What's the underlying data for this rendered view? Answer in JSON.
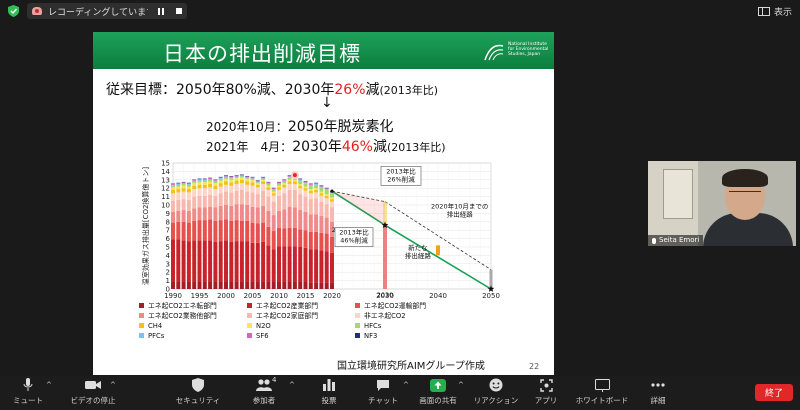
{
  "top_bar": {
    "recording_text": "レコーディングしています...",
    "view_label": "表示"
  },
  "slide": {
    "title": "日本の排出削減目標",
    "org_logo_text": "National Institute for Environmental Studies, Japan",
    "line1": {
      "prefix": "従来目標：2050年80%減、2030年",
      "highlight": "26%",
      "suffix": "減",
      "note": "(2013年比)"
    },
    "line2": {
      "label": "2020年10月：",
      "value": "2050年脱炭素化"
    },
    "line3": {
      "label": "2021年　4月：",
      "prefix": "2030年",
      "highlight": "46%",
      "suffix": "減",
      "note": "(2013年比)"
    },
    "credit": "国立環境研究所AIMグループ作成",
    "page_number": "22"
  },
  "chart_data": {
    "type": "bar",
    "ylabel": "温室効果ガス排出量[CO2換算億トン]",
    "ylim": [
      0,
      15
    ],
    "yticks": [
      "0",
      "1",
      "2",
      "3",
      "4",
      "5",
      "6",
      "7",
      "8",
      "9",
      "10",
      "11",
      "12",
      "13",
      "14",
      "15"
    ],
    "xticks": [
      "1990",
      "1995",
      "2000",
      "2005",
      "2010",
      "2015",
      "2020",
      "2030",
      "2040",
      "2050"
    ],
    "annotations": [
      {
        "text": "2020"
      },
      {
        "text": "2030"
      },
      {
        "text": "2013年比\n26%削減"
      },
      {
        "text": "2013年比\n46%削減"
      },
      {
        "text": "2020年10月までの\n排出経路"
      },
      {
        "text": "新たな\n排出経路"
      }
    ],
    "colors": {
      "energy_conversion": "#a51c24",
      "industry": "#c8232c",
      "transport": "#e6504e",
      "business": "#f08a8a",
      "household": "#f7b8b0",
      "non_energy_co2": "#fbd6c8",
      "ch4": "#f3c21a",
      "n2o": "#f8e55a",
      "hfcs": "#a8d86a",
      "pfcs": "#7ac3ee",
      "sf6": "#e060c0",
      "nf3": "#223080",
      "new_pathway": "#18a050",
      "old_pathway": "#333333"
    },
    "legend": [
      [
        "エネ起CO2エネ転部門",
        "エネ起CO2産業部門",
        "エネ起CO2運輸部門"
      ],
      [
        "エネ起CO2業務他部門",
        "エネ起CO2家庭部門",
        "非エネ起CO2"
      ],
      [
        "CH4",
        "N2O",
        "HFCs"
      ],
      [
        "PFCs",
        "SF6",
        "NF3"
      ]
    ],
    "series_years": [
      1990,
      1991,
      1992,
      1993,
      1994,
      1995,
      1996,
      1997,
      1998,
      1999,
      2000,
      2001,
      2002,
      2003,
      2004,
      2005,
      2006,
      2007,
      2008,
      2009,
      2010,
      2011,
      2012,
      2013,
      2014,
      2015,
      2016,
      2017,
      2018,
      2019,
      2020
    ],
    "series": [
      {
        "name": "エネ起CO2エネ転部門",
        "values": [
          0.9,
          0.9,
          0.9,
          0.9,
          0.9,
          0.9,
          0.9,
          0.9,
          0.9,
          0.9,
          0.9,
          0.9,
          0.9,
          0.9,
          0.9,
          0.9,
          0.9,
          0.9,
          0.9,
          0.9,
          0.9,
          0.9,
          0.9,
          0.9,
          0.9,
          0.9,
          0.8,
          0.8,
          0.8,
          0.8,
          0.8
        ]
      },
      {
        "name": "エネ起CO2産業部門",
        "values": [
          5.0,
          5.0,
          4.9,
          4.8,
          4.9,
          4.9,
          4.9,
          4.9,
          4.7,
          4.8,
          4.9,
          4.7,
          4.8,
          4.8,
          4.8,
          4.6,
          4.6,
          4.7,
          4.3,
          3.8,
          4.2,
          4.2,
          4.2,
          4.2,
          4.1,
          4.0,
          3.9,
          3.9,
          3.8,
          3.7,
          3.5
        ]
      },
      {
        "name": "エネ起CO2運輸部門",
        "values": [
          2.0,
          2.1,
          2.2,
          2.2,
          2.3,
          2.4,
          2.4,
          2.5,
          2.5,
          2.5,
          2.5,
          2.5,
          2.5,
          2.4,
          2.4,
          2.4,
          2.3,
          2.3,
          2.2,
          2.2,
          2.2,
          2.1,
          2.2,
          2.2,
          2.1,
          2.1,
          2.1,
          2.1,
          2.1,
          2.1,
          1.9
        ]
      },
      {
        "name": "エネ起CO2業務他部門",
        "values": [
          1.3,
          1.3,
          1.4,
          1.4,
          1.5,
          1.5,
          1.5,
          1.5,
          1.6,
          1.7,
          1.7,
          1.8,
          1.9,
          2.0,
          1.9,
          1.9,
          1.9,
          2.0,
          1.9,
          1.9,
          2.0,
          2.3,
          2.5,
          2.4,
          2.3,
          2.2,
          2.1,
          2.1,
          2.0,
          1.9,
          1.8
        ]
      },
      {
        "name": "エネ起CO2家庭部門",
        "values": [
          1.3,
          1.3,
          1.3,
          1.3,
          1.4,
          1.4,
          1.4,
          1.4,
          1.4,
          1.5,
          1.6,
          1.6,
          1.6,
          1.7,
          1.6,
          1.7,
          1.6,
          1.8,
          1.7,
          1.6,
          1.8,
          1.9,
          2.0,
          2.1,
          1.9,
          1.8,
          1.8,
          1.9,
          1.7,
          1.6,
          1.7
        ]
      },
      {
        "name": "非エネ起CO2",
        "values": [
          0.9,
          0.9,
          0.9,
          0.9,
          0.9,
          0.9,
          0.9,
          0.9,
          0.8,
          0.8,
          0.8,
          0.8,
          0.8,
          0.8,
          0.8,
          0.8,
          0.8,
          0.8,
          0.8,
          0.7,
          0.7,
          0.7,
          0.7,
          0.7,
          0.7,
          0.7,
          0.7,
          0.7,
          0.7,
          0.7,
          0.7
        ]
      },
      {
        "name": "CH4",
        "values": [
          0.4,
          0.4,
          0.4,
          0.4,
          0.4,
          0.4,
          0.4,
          0.4,
          0.4,
          0.4,
          0.4,
          0.4,
          0.4,
          0.4,
          0.4,
          0.4,
          0.3,
          0.3,
          0.3,
          0.3,
          0.3,
          0.3,
          0.3,
          0.3,
          0.3,
          0.3,
          0.3,
          0.3,
          0.3,
          0.3,
          0.3
        ]
      },
      {
        "name": "N2O",
        "values": [
          0.3,
          0.3,
          0.3,
          0.3,
          0.3,
          0.3,
          0.3,
          0.3,
          0.3,
          0.3,
          0.3,
          0.3,
          0.3,
          0.3,
          0.3,
          0.3,
          0.2,
          0.2,
          0.2,
          0.2,
          0.2,
          0.2,
          0.2,
          0.2,
          0.2,
          0.2,
          0.2,
          0.2,
          0.2,
          0.2,
          0.2
        ]
      },
      {
        "name": "HFCs",
        "values": [
          0.2,
          0.2,
          0.2,
          0.2,
          0.2,
          0.2,
          0.2,
          0.2,
          0.2,
          0.2,
          0.2,
          0.2,
          0.1,
          0.1,
          0.1,
          0.1,
          0.1,
          0.1,
          0.2,
          0.2,
          0.2,
          0.2,
          0.3,
          0.3,
          0.4,
          0.4,
          0.4,
          0.4,
          0.5,
          0.5,
          0.5
        ]
      },
      {
        "name": "PFCs",
        "values": [
          0.1,
          0.1,
          0.1,
          0.1,
          0.1,
          0.1,
          0.1,
          0.1,
          0.1,
          0.1,
          0.1,
          0.1,
          0.1,
          0.1,
          0.1,
          0.1,
          0.1,
          0.1,
          0.1,
          0.1,
          0.1,
          0.1,
          0.1,
          0.1,
          0.1,
          0.1,
          0.1,
          0.1,
          0.1,
          0.1,
          0.1
        ]
      },
      {
        "name": "SF6",
        "values": [
          0.1,
          0.1,
          0.1,
          0.1,
          0.1,
          0.1,
          0.1,
          0.1,
          0.1,
          0.1,
          0.1,
          0.1,
          0.1,
          0.1,
          0.1,
          0.1,
          0.1,
          0.1,
          0.1,
          0.1,
          0.1,
          0.1,
          0.1,
          0.1,
          0.1,
          0.1,
          0.1,
          0.1,
          0.1,
          0.1,
          0.1
        ]
      },
      {
        "name": "NF3",
        "values": [
          0.05,
          0.05,
          0.05,
          0.05,
          0.05,
          0.05,
          0.05,
          0.05,
          0.05,
          0.05,
          0.05,
          0.05,
          0.05,
          0.05,
          0.05,
          0.05,
          0.05,
          0.05,
          0.05,
          0.05,
          0.05,
          0.05,
          0.05,
          0.05,
          0.05,
          0.05,
          0.05,
          0.05,
          0.05,
          0.05,
          0.05
        ]
      }
    ],
    "pathway_2030_new": 7.6,
    "pathway_2030_old": 10.4,
    "pathway_2050": 0,
    "old_2050_residual": 2.3
  },
  "participant": {
    "name": "Seita Emori"
  },
  "toolbar": {
    "items": [
      {
        "label": "ミュート",
        "icon": "microphone-icon"
      },
      {
        "label": "ビデオの停止",
        "icon": "video-camera-icon"
      },
      {
        "label": "セキュリティ",
        "icon": "shield-icon"
      },
      {
        "label": "参加者",
        "icon": "participants-icon",
        "count": "4"
      },
      {
        "label": "投票",
        "icon": "bar-chart-icon"
      },
      {
        "label": "チャット",
        "icon": "chat-icon"
      },
      {
        "label": "画面の共有",
        "icon": "share-screen-icon"
      },
      {
        "label": "リアクション",
        "icon": "smiley-icon"
      },
      {
        "label": "アプリ",
        "icon": "apps-icon"
      },
      {
        "label": "ホワイトボード",
        "icon": "whiteboard-icon"
      },
      {
        "label": "詳細",
        "icon": "more-icon"
      }
    ],
    "end_label": "終了"
  }
}
